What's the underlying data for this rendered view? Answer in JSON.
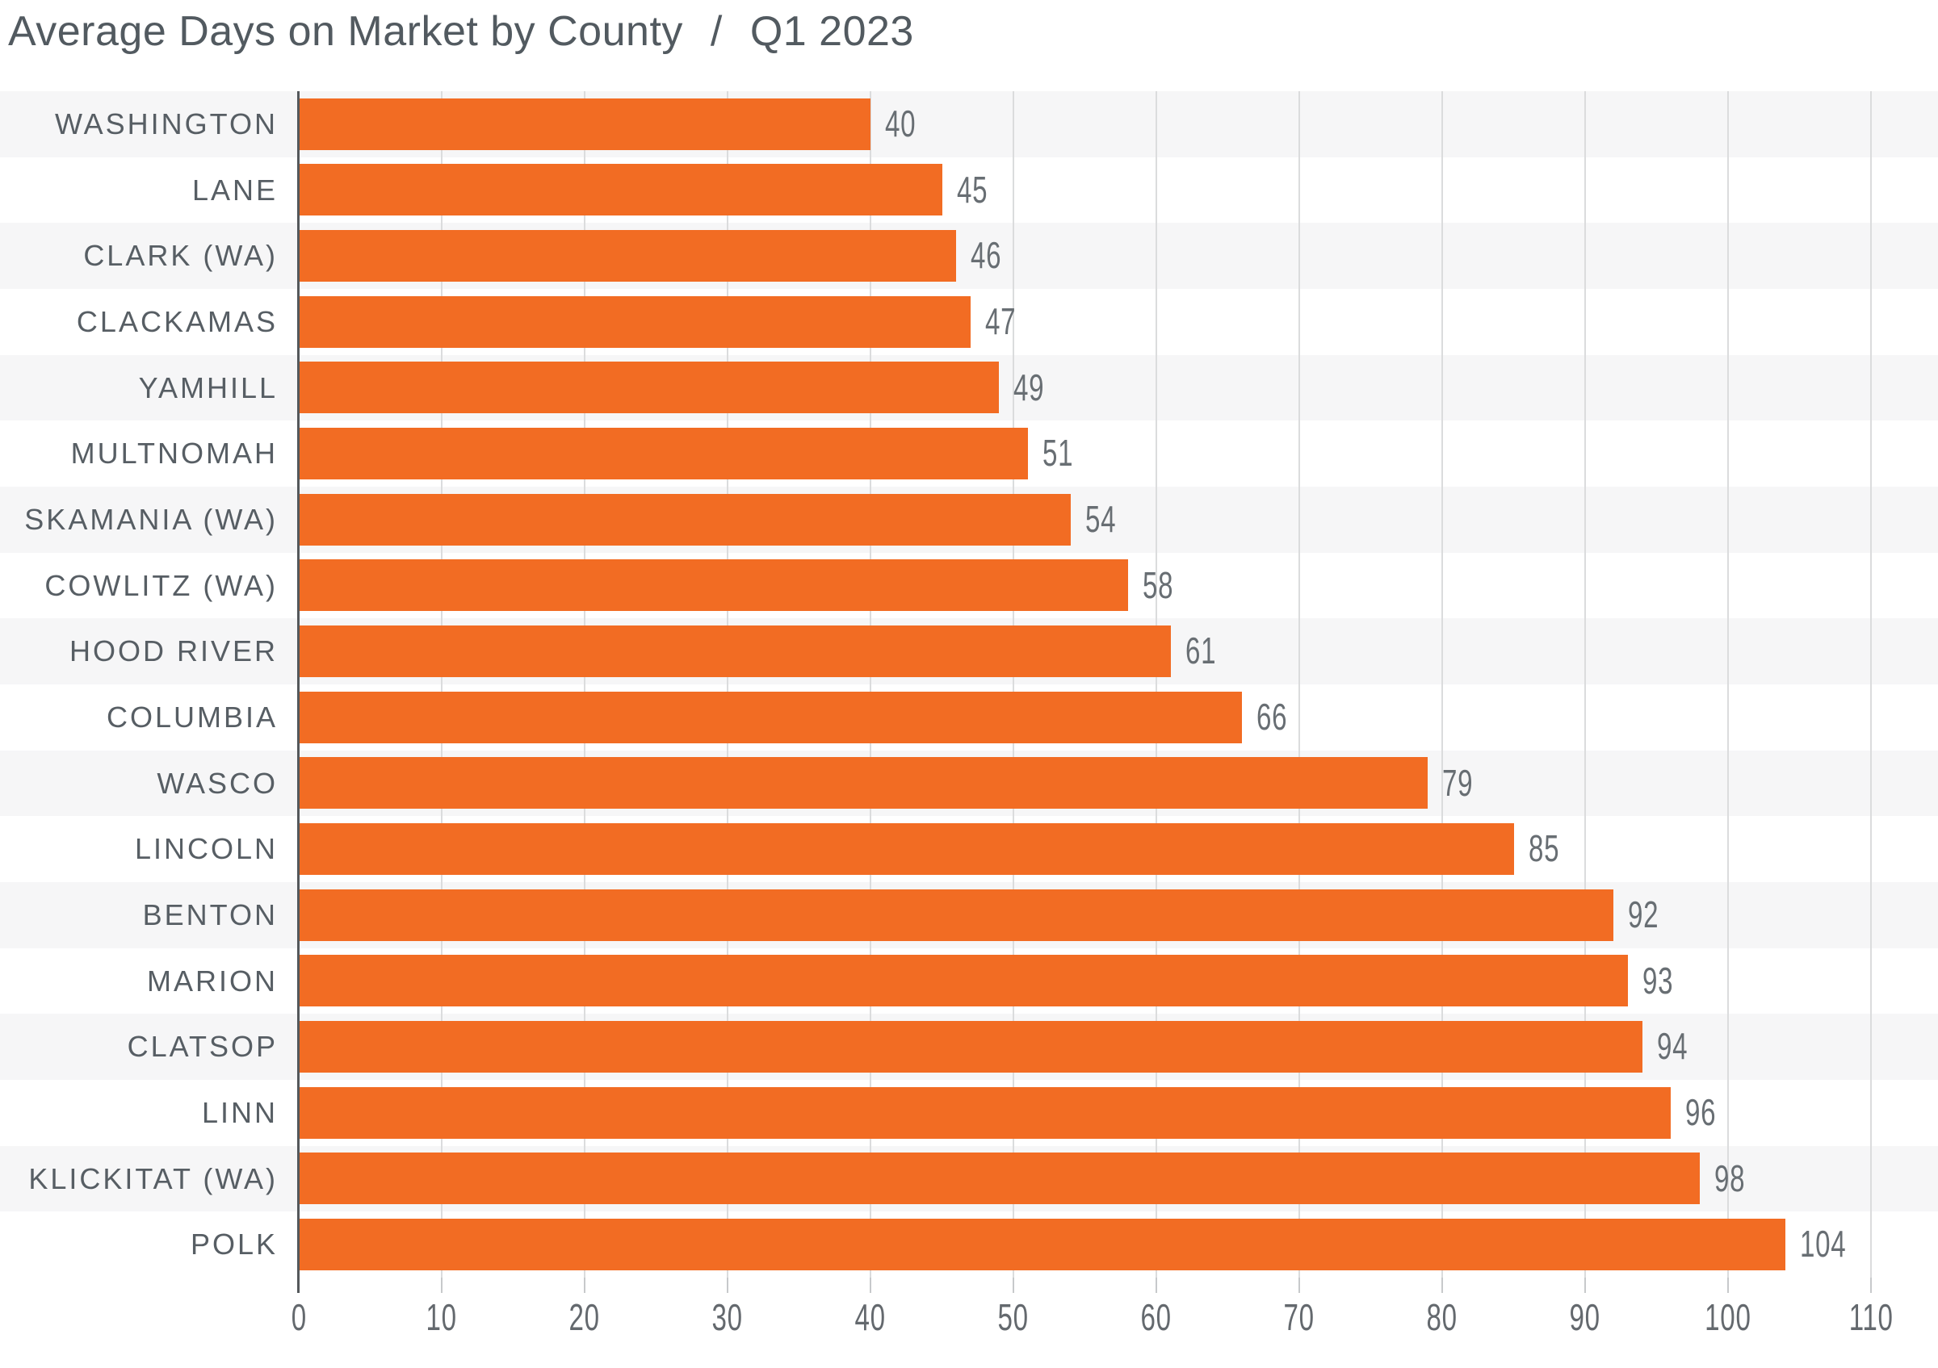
{
  "title": {
    "main": "Average Days on Market by County",
    "separator": "/",
    "period": "Q1 2023"
  },
  "chart_data": {
    "type": "bar",
    "orientation": "horizontal",
    "title": "Average Days on Market by County / Q1 2023",
    "categories": [
      "WASHINGTON",
      "LANE",
      "CLARK (WA)",
      "CLACKAMAS",
      "YAMHILL",
      "MULTNOMAH",
      "SKAMANIA (WA)",
      "COWLITZ (WA)",
      "HOOD RIVER",
      "COLUMBIA",
      "WASCO",
      "LINCOLN",
      "BENTON",
      "MARION",
      "CLATSOP",
      "LINN",
      "KLICKITAT (WA)",
      "POLK"
    ],
    "values": [
      40,
      45,
      46,
      47,
      49,
      51,
      54,
      58,
      61,
      66,
      79,
      85,
      92,
      93,
      94,
      96,
      98,
      104
    ],
    "xlabel": "",
    "ylabel": "",
    "xlim": [
      0,
      110
    ],
    "x_ticks": [
      0,
      10,
      20,
      30,
      40,
      50,
      60,
      70,
      80,
      90,
      100,
      110
    ],
    "grid": true,
    "legend": "none",
    "data_labels": "end-of-bar",
    "row_striping": "alternating, first row shaded"
  },
  "colors": {
    "bar": "#f26c23",
    "title_text": "#525a60",
    "category_text": "#575e64",
    "value_text": "#686e73",
    "tick_text": "#64696e",
    "stripe": "#f6f6f7",
    "gridline": "#dbdcdd",
    "axis_line": "#54585b",
    "tick_mark": "#c7c9cb",
    "background": "#ffffff"
  }
}
